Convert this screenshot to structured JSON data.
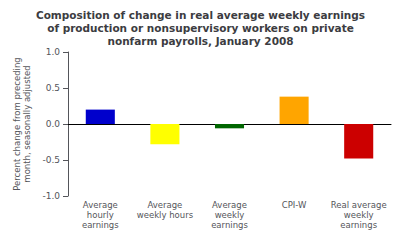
{
  "chart_data": {
    "type": "bar",
    "title": "Composition of change in real average weekly earnings\nof production or nonsupervisory workers on private\nnonfarm payrolls, January 2008",
    "ylabel": "Percent change from preceding\nmonth, seasonally adjusted",
    "categories": [
      "Average\nhourly\nearnings",
      "Average\nweekly hours",
      "Average\nweekly\nearnings",
      "CPI-W",
      "Real average\nweekly\nearnings"
    ],
    "values": [
      0.2,
      -0.28,
      -0.06,
      0.38,
      -0.48
    ],
    "colors": [
      "#0000CC",
      "#FFFF00",
      "#006600",
      "#FFA500",
      "#CC0000"
    ],
    "ylim": [
      -1.0,
      1.0
    ],
    "yticks": [
      {
        "value": -1.0,
        "label": "-1.0"
      },
      -0.5,
      {
        "value": 0.0,
        "label": "0.0"
      },
      0.5,
      {
        "value": 1.0,
        "label": "1.0"
      }
    ],
    "grid": false
  }
}
